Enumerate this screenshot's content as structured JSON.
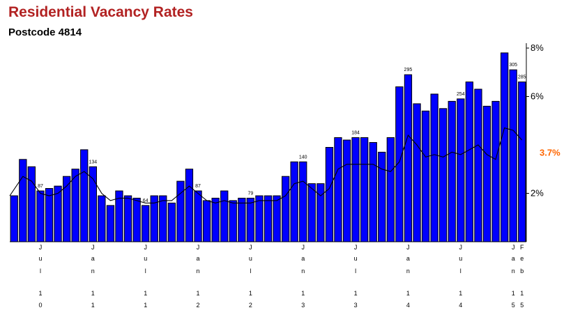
{
  "chart_data": {
    "type": "bar",
    "title": "Residential Vacancy Rates",
    "subtitle": "Postcode 4814",
    "series": [
      {
        "type": "bar",
        "color": "#0000ff",
        "values": [
          1.9,
          3.4,
          3.1,
          2.1,
          2.2,
          2.3,
          2.7,
          3.0,
          3.8,
          3.1,
          1.9,
          1.5,
          2.1,
          1.9,
          1.8,
          1.5,
          1.9,
          1.9,
          1.6,
          2.5,
          3.0,
          2.1,
          1.7,
          1.8,
          2.1,
          1.7,
          1.8,
          1.8,
          1.9,
          1.9,
          1.9,
          2.7,
          3.3,
          3.3,
          2.4,
          2.4,
          3.9,
          4.3,
          4.2,
          4.3,
          4.3,
          4.1,
          3.7,
          4.3,
          6.4,
          6.9,
          5.7,
          5.4,
          6.1,
          5.5,
          5.8,
          5.9,
          6.6,
          6.3,
          5.6,
          5.8,
          7.8,
          7.1,
          6.6
        ]
      },
      {
        "type": "line",
        "color": "#000000",
        "values": [
          1.9,
          2.7,
          2.5,
          2.0,
          1.9,
          2.0,
          2.3,
          2.7,
          2.9,
          2.6,
          2.0,
          1.7,
          1.8,
          1.8,
          1.7,
          1.6,
          1.6,
          1.7,
          1.7,
          2.0,
          2.3,
          2.0,
          1.7,
          1.6,
          1.7,
          1.6,
          1.6,
          1.6,
          1.7,
          1.7,
          1.7,
          1.9,
          2.4,
          2.5,
          2.2,
          1.9,
          2.2,
          3.0,
          3.2,
          3.2,
          3.2,
          3.2,
          3.0,
          2.9,
          3.3,
          4.4,
          4.0,
          3.5,
          3.6,
          3.5,
          3.7,
          3.6,
          3.8,
          4.0,
          3.6,
          3.4,
          4.7,
          4.6,
          4.2
        ]
      }
    ],
    "value_labels": [
      {
        "index": 3,
        "text": "87"
      },
      {
        "index": 9,
        "text": "134"
      },
      {
        "index": 15,
        "text": "64"
      },
      {
        "index": 21,
        "text": "87"
      },
      {
        "index": 27,
        "text": "79"
      },
      {
        "index": 33,
        "text": "140"
      },
      {
        "index": 39,
        "text": "184"
      },
      {
        "index": 45,
        "text": "295"
      },
      {
        "index": 51,
        "text": "254"
      },
      {
        "index": 57,
        "text": "305"
      },
      {
        "index": 58,
        "text": "285"
      }
    ],
    "y_ticks": [
      {
        "value": 8,
        "label": "8%"
      },
      {
        "value": 6,
        "label": "6%"
      },
      {
        "value": 2,
        "label": "2%"
      }
    ],
    "current_value_label": "3.7%",
    "current_value": 3.7,
    "ylim": [
      0,
      8.2
    ],
    "x_labels": [
      {
        "index": 3,
        "lines": [
          "J",
          "u",
          "l",
          "",
          "1",
          "0"
        ]
      },
      {
        "index": 9,
        "lines": [
          "J",
          "a",
          "n",
          "",
          "1",
          "1"
        ]
      },
      {
        "index": 15,
        "lines": [
          "J",
          "u",
          "l",
          "",
          "1",
          "1"
        ]
      },
      {
        "index": 21,
        "lines": [
          "J",
          "a",
          "n",
          "",
          "1",
          "2"
        ]
      },
      {
        "index": 27,
        "lines": [
          "J",
          "u",
          "l",
          "",
          "1",
          "2"
        ]
      },
      {
        "index": 33,
        "lines": [
          "J",
          "a",
          "n",
          "",
          "1",
          "3"
        ]
      },
      {
        "index": 39,
        "lines": [
          "J",
          "u",
          "l",
          "",
          "1",
          "3"
        ]
      },
      {
        "index": 45,
        "lines": [
          "J",
          "a",
          "n",
          "",
          "1",
          "4"
        ]
      },
      {
        "index": 51,
        "lines": [
          "J",
          "u",
          "l",
          "",
          "1",
          "4"
        ]
      },
      {
        "index": 57,
        "lines": [
          "J",
          "a",
          "n",
          "",
          "1",
          "5"
        ]
      },
      {
        "index": 58,
        "lines": [
          "F",
          "e",
          "b",
          "",
          "1",
          "5"
        ]
      }
    ],
    "grid": false,
    "legend": "none"
  }
}
